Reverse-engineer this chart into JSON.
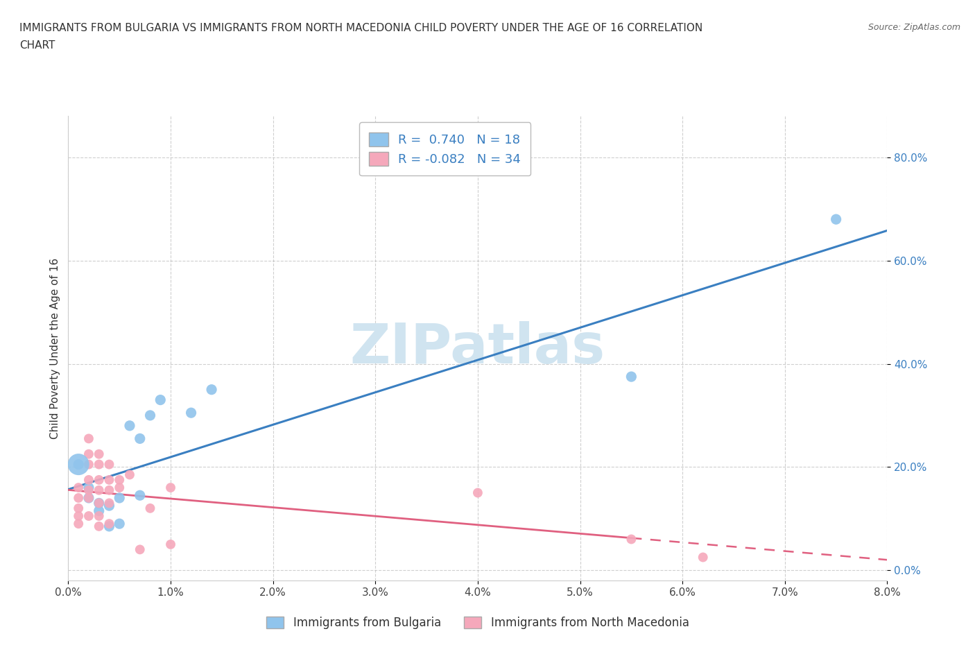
{
  "title_line1": "IMMIGRANTS FROM BULGARIA VS IMMIGRANTS FROM NORTH MACEDONIA CHILD POVERTY UNDER THE AGE OF 16 CORRELATION",
  "title_line2": "CHART",
  "source": "Source: ZipAtlas.com",
  "xlabel_bottom": "Immigrants from Bulgaria",
  "xlabel_bottom2": "Immigrants from North Macedonia",
  "ylabel": "Child Poverty Under the Age of 16",
  "xlim": [
    0.0,
    0.08
  ],
  "ylim": [
    -0.02,
    0.88
  ],
  "xticks": [
    0.0,
    0.01,
    0.02,
    0.03,
    0.04,
    0.05,
    0.06,
    0.07,
    0.08
  ],
  "yticks": [
    0.0,
    0.2,
    0.4,
    0.6,
    0.8
  ],
  "ytick_labels": [
    "0.0%",
    "20.0%",
    "40.0%",
    "60.0%",
    "80.0%"
  ],
  "xtick_labels": [
    "0.0%",
    "1.0%",
    "2.0%",
    "3.0%",
    "4.0%",
    "5.0%",
    "6.0%",
    "7.0%",
    "8.0%"
  ],
  "bulgaria_color": "#90C4EC",
  "macedonia_color": "#F5A8BB",
  "bulgaria_R": 0.74,
  "bulgaria_N": 18,
  "macedonia_R": -0.082,
  "macedonia_N": 34,
  "bulgaria_line_color": "#3A7FC1",
  "macedonia_line_color": "#E06080",
  "watermark": "ZIPatlas",
  "watermark_color": "#D0E4F0",
  "background_color": "#ffffff",
  "grid_color": "#bbbbbb",
  "bulgaria_scatter": [
    [
      0.001,
      0.205
    ],
    [
      0.002,
      0.16
    ],
    [
      0.002,
      0.14
    ],
    [
      0.003,
      0.13
    ],
    [
      0.003,
      0.115
    ],
    [
      0.004,
      0.125
    ],
    [
      0.004,
      0.085
    ],
    [
      0.005,
      0.14
    ],
    [
      0.005,
      0.09
    ],
    [
      0.006,
      0.28
    ],
    [
      0.007,
      0.145
    ],
    [
      0.007,
      0.255
    ],
    [
      0.008,
      0.3
    ],
    [
      0.009,
      0.33
    ],
    [
      0.012,
      0.305
    ],
    [
      0.014,
      0.35
    ],
    [
      0.055,
      0.375
    ],
    [
      0.075,
      0.68
    ]
  ],
  "macedonia_scatter": [
    [
      0.001,
      0.16
    ],
    [
      0.001,
      0.14
    ],
    [
      0.001,
      0.12
    ],
    [
      0.001,
      0.105
    ],
    [
      0.001,
      0.09
    ],
    [
      0.002,
      0.255
    ],
    [
      0.002,
      0.225
    ],
    [
      0.002,
      0.205
    ],
    [
      0.002,
      0.175
    ],
    [
      0.002,
      0.155
    ],
    [
      0.002,
      0.14
    ],
    [
      0.002,
      0.105
    ],
    [
      0.003,
      0.225
    ],
    [
      0.003,
      0.205
    ],
    [
      0.003,
      0.175
    ],
    [
      0.003,
      0.155
    ],
    [
      0.003,
      0.13
    ],
    [
      0.003,
      0.105
    ],
    [
      0.003,
      0.085
    ],
    [
      0.004,
      0.205
    ],
    [
      0.004,
      0.175
    ],
    [
      0.004,
      0.155
    ],
    [
      0.004,
      0.13
    ],
    [
      0.004,
      0.09
    ],
    [
      0.005,
      0.175
    ],
    [
      0.005,
      0.16
    ],
    [
      0.006,
      0.185
    ],
    [
      0.007,
      0.04
    ],
    [
      0.008,
      0.12
    ],
    [
      0.01,
      0.16
    ],
    [
      0.01,
      0.05
    ],
    [
      0.04,
      0.15
    ],
    [
      0.055,
      0.06
    ],
    [
      0.062,
      0.025
    ]
  ],
  "legend_box_color": "#ffffff",
  "legend_edge_color": "#bbbbbb",
  "macedonia_line_solid_end": 0.055,
  "macedonia_line_dash_start": 0.055
}
